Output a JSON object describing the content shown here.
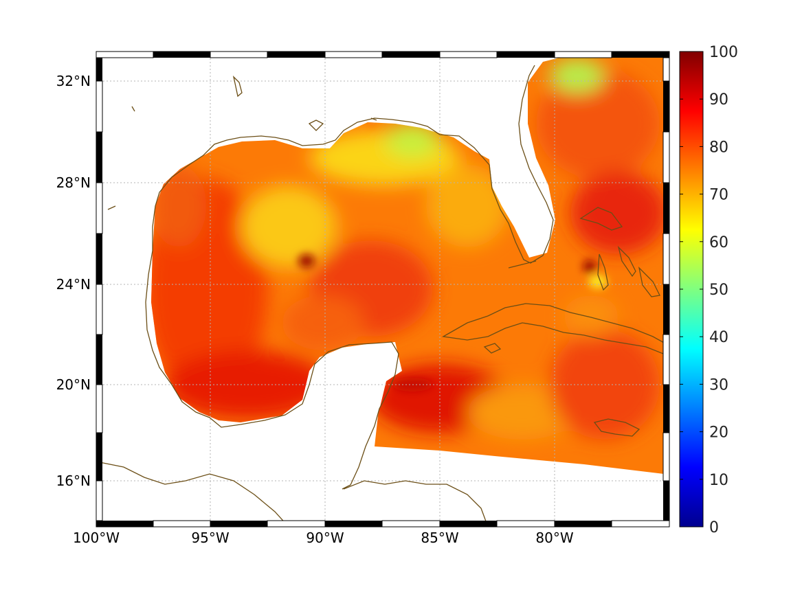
{
  "chart_data": {
    "type": "heatmap",
    "x_range_deg": [
      -100,
      -75
    ],
    "y_range_deg": [
      14.2,
      33
    ],
    "x_ticks": [
      {
        "value": -100,
        "label": "100°W"
      },
      {
        "value": -95,
        "label": "95°W"
      },
      {
        "value": -90,
        "label": "90°W"
      },
      {
        "value": -85,
        "label": "85°W"
      },
      {
        "value": -80,
        "label": "80°W"
      }
    ],
    "y_ticks": [
      {
        "value": 16,
        "label": "16°N"
      },
      {
        "value": 20,
        "label": "20°N"
      },
      {
        "value": 24,
        "label": "24°N"
      },
      {
        "value": 28,
        "label": "28°N"
      },
      {
        "value": 32,
        "label": "32°N"
      }
    ],
    "colorbar": {
      "colormap": "jet",
      "min": 0,
      "max": 100,
      "ticks": [
        {
          "value": 100,
          "label": "100"
        },
        {
          "value": 90,
          "label": "90"
        },
        {
          "value": 80,
          "label": "80"
        },
        {
          "value": 70,
          "label": "70"
        },
        {
          "value": 60,
          "label": "60"
        },
        {
          "value": 50,
          "label": "50"
        },
        {
          "value": 40,
          "label": "40"
        },
        {
          "value": 30,
          "label": "30"
        },
        {
          "value": 20,
          "label": "20"
        },
        {
          "value": 10,
          "label": "10"
        },
        {
          "value": 0,
          "label": "0"
        }
      ]
    },
    "field_range_observed": [
      55,
      100
    ],
    "grid": true,
    "coastline_color": "#6b4e16",
    "frame_style": "alternating black/white border"
  }
}
